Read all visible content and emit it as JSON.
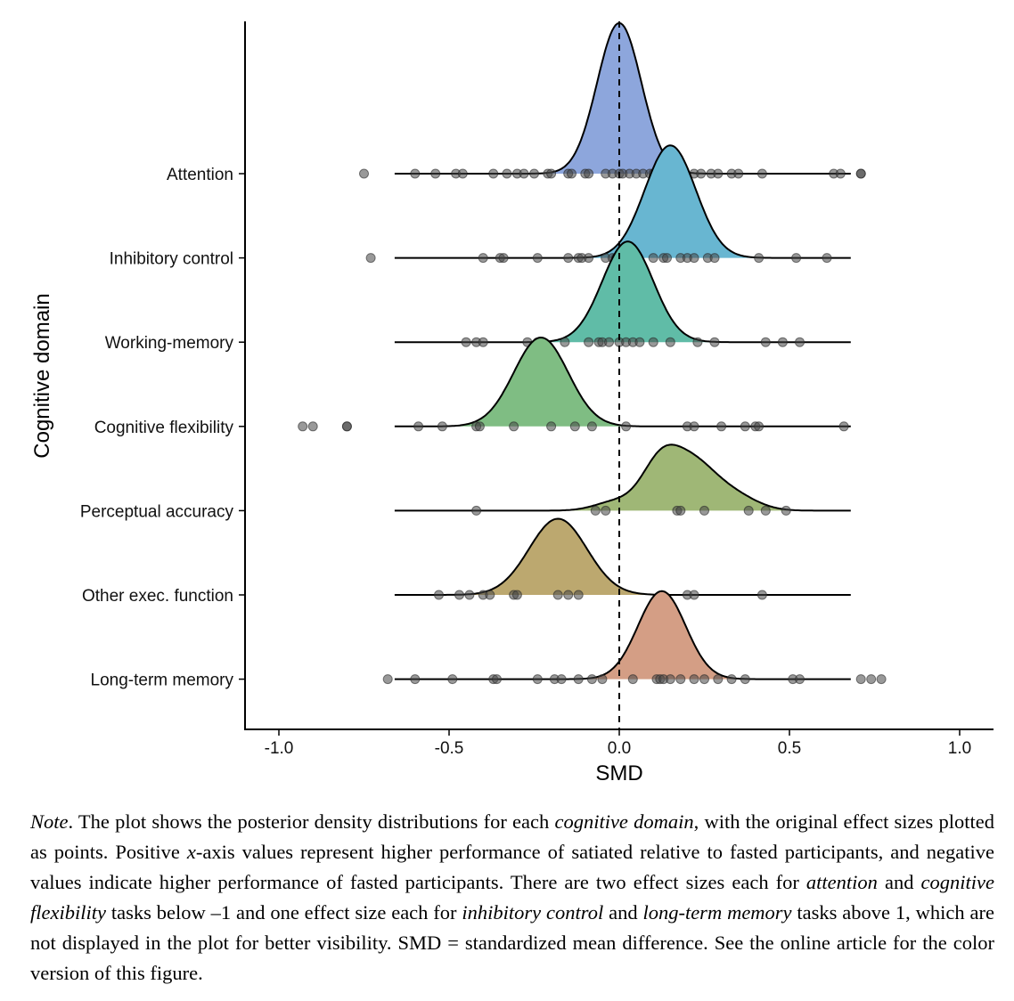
{
  "chart_data": {
    "type": "ridgeline",
    "xlabel": "SMD",
    "ylabel": "Cognitive domain",
    "xlim": [
      -1.1,
      1.1
    ],
    "x_ticks": [
      -1.0,
      -0.5,
      0.0,
      0.5,
      1.0
    ],
    "x_tick_labels": [
      "-1.0",
      "-0.5",
      "0.0",
      "0.5",
      "1.0"
    ],
    "reference_line": 0,
    "series": [
      {
        "name": "Attention",
        "color": "#8da6dc",
        "density_range": [
          -0.66,
          0.68
        ],
        "peaks": [
          {
            "mu": 0.0,
            "sd": 0.065,
            "w": 1.0
          }
        ],
        "height": 1.78,
        "points": [
          -0.75,
          -0.6,
          -0.54,
          -0.48,
          -0.46,
          -0.37,
          -0.33,
          -0.3,
          -0.28,
          -0.25,
          -0.21,
          -0.2,
          -0.15,
          -0.14,
          -0.1,
          -0.09,
          -0.04,
          -0.02,
          0.0,
          0.01,
          0.03,
          0.05,
          0.07,
          0.09,
          0.1,
          0.12,
          0.14,
          0.16,
          0.19,
          0.22,
          0.24,
          0.27,
          0.29,
          0.33,
          0.35,
          0.42,
          0.63,
          0.65,
          0.71,
          0.71
        ]
      },
      {
        "name": "Inhibitory control",
        "color": "#68b6d1",
        "density_range": [
          -0.66,
          0.68
        ],
        "peaks": [
          {
            "mu": 0.15,
            "sd": 0.075,
            "w": 1.0
          }
        ],
        "height": 1.33,
        "points": [
          -0.73,
          -0.4,
          -0.35,
          -0.34,
          -0.24,
          -0.15,
          -0.12,
          -0.11,
          -0.09,
          -0.04,
          -0.02,
          -0.01,
          0.05,
          0.1,
          0.13,
          0.14,
          0.18,
          0.2,
          0.22,
          0.26,
          0.28,
          0.41,
          0.52,
          0.61
        ]
      },
      {
        "name": "Working-memory",
        "color": "#60bca7",
        "density_range": [
          -0.66,
          0.68
        ],
        "peaks": [
          {
            "mu": 0.025,
            "sd": 0.075,
            "w": 1.0
          }
        ],
        "height": 1.19,
        "points": [
          -0.45,
          -0.42,
          -0.4,
          -0.27,
          -0.24,
          -0.16,
          -0.09,
          -0.06,
          -0.05,
          -0.03,
          0.0,
          0.02,
          0.04,
          0.06,
          0.1,
          0.15,
          0.23,
          0.28,
          0.43,
          0.48,
          0.53
        ]
      },
      {
        "name": "Cognitive flexibility",
        "color": "#7fbd83",
        "density_range": [
          -0.66,
          0.68
        ],
        "peaks": [
          {
            "mu": -0.23,
            "sd": 0.08,
            "w": 1.0
          }
        ],
        "height": 1.05,
        "points": [
          -0.93,
          -0.9,
          -0.8,
          -0.8,
          -0.59,
          -0.52,
          -0.42,
          -0.41,
          -0.31,
          -0.2,
          -0.13,
          -0.08,
          0.02,
          0.2,
          0.22,
          0.3,
          0.37,
          0.4,
          0.41,
          0.66
        ]
      },
      {
        "name": "Perceptual accuracy",
        "color": "#9fb776",
        "density_range": [
          -0.66,
          0.68
        ],
        "peaks": [
          {
            "mu": 0.12,
            "sd": 0.055,
            "w": 1.0
          },
          {
            "mu": 0.215,
            "sd": 0.065,
            "w": 0.95
          },
          {
            "mu": 0.33,
            "sd": 0.07,
            "w": 0.35
          },
          {
            "mu": -0.01,
            "sd": 0.06,
            "w": 0.2
          }
        ],
        "height": 0.78,
        "points": [
          -0.42,
          -0.07,
          -0.04,
          0.17,
          0.18,
          0.25,
          0.38,
          0.43,
          0.49
        ]
      },
      {
        "name": "Other exec. function",
        "color": "#bca86f",
        "density_range": [
          -0.66,
          0.68
        ],
        "peaks": [
          {
            "mu": -0.18,
            "sd": 0.085,
            "w": 1.0
          }
        ],
        "height": 0.9,
        "points": [
          -0.53,
          -0.47,
          -0.44,
          -0.4,
          -0.38,
          -0.31,
          -0.3,
          -0.18,
          -0.15,
          -0.12,
          0.2,
          0.22,
          0.42
        ]
      },
      {
        "name": "Long-term memory",
        "color": "#d49e85",
        "density_range": [
          -0.66,
          0.68
        ],
        "peaks": [
          {
            "mu": 0.125,
            "sd": 0.07,
            "w": 1.0
          }
        ],
        "height": 1.04,
        "points": [
          -0.68,
          -0.6,
          -0.49,
          -0.37,
          -0.36,
          -0.24,
          -0.19,
          -0.17,
          -0.12,
          -0.08,
          -0.05,
          0.04,
          0.11,
          0.12,
          0.13,
          0.15,
          0.18,
          0.22,
          0.25,
          0.29,
          0.33,
          0.37,
          0.51,
          0.53,
          0.71,
          0.74,
          0.77
        ]
      }
    ]
  },
  "note": {
    "label": "Note",
    "p1": ".   The plot shows the posterior density distributions for each ",
    "e1": "cognitive domain",
    "p2": ", with the original effect sizes plotted as points. Positive ",
    "e2": "x",
    "p3": "-axis values represent higher performance of satiated relative to fasted participants, and negative values indicate higher performance of fasted participants. There are two effect sizes each for ",
    "e3": "attention",
    "p4": " and ",
    "e4": "cognitive flexibility",
    "p5": " tasks below –1 and one effect size each for ",
    "e5": "inhibitory control",
    "p6": " and ",
    "e6": "long-term memory",
    "p7": " tasks above 1, which are not displayed in the plot for better visibility. SMD = standardized mean difference. See the online article for the color version of this figure."
  }
}
